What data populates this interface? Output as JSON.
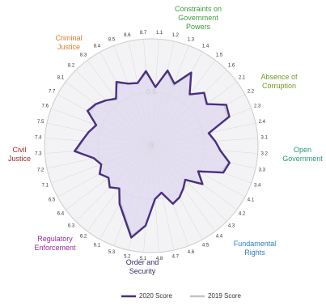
{
  "chart_data": {
    "type": "radar",
    "categories": [
      "1.1",
      "1.2",
      "1.3",
      "1.4",
      "1.5",
      "1.6",
      "2.1",
      "2.2",
      "2.3",
      "2.4",
      "3.1",
      "3.2",
      "3.3",
      "3.4",
      "4.1",
      "4.2",
      "4.3",
      "4.4",
      "4.5",
      "4.6",
      "4.7",
      "4.8",
      "5.1",
      "5.2",
      "5.3",
      "6.1",
      "6.2",
      "6.3",
      "6.4",
      "6.5",
      "7.1",
      "7.2",
      "7.3",
      "7.4",
      "7.5",
      "7.6",
      "7.7",
      "8.1",
      "8.2",
      "8.3",
      "8.4",
      "8.5",
      "8.6",
      "8.7"
    ],
    "groups": [
      {
        "lines": [
          "Constraints on",
          "Government",
          "Powers"
        ],
        "color": "#3f9a3f"
      },
      {
        "lines": [
          "Absence of",
          "Corruption"
        ],
        "color": "#6f9a1f"
      },
      {
        "lines": [
          "Open",
          "Government"
        ],
        "color": "#1f9a7a"
      },
      {
        "lines": [
          "Fundamental",
          "Rights"
        ],
        "color": "#2a7fc4"
      },
      {
        "lines": [
          "Order and",
          "Security"
        ],
        "color": "#3b2a6e"
      },
      {
        "lines": [
          "Regulatory",
          "Enforcement"
        ],
        "color": "#9a2a9a"
      },
      {
        "lines": [
          "Civil",
          "Justice"
        ],
        "color": "#a0282a"
      },
      {
        "lines": [
          "Criminal",
          "Justice"
        ],
        "color": "#e07a2a"
      }
    ],
    "series": [
      {
        "name": "2019 Score",
        "color": "#c4c4c4",
        "fill": "#ddd8ee",
        "values": [
          0.56,
          0.7,
          0.6,
          0.76,
          0.6,
          0.7,
          0.66,
          0.78,
          0.76,
          0.56,
          0.6,
          0.64,
          0.74,
          0.7,
          0.5,
          0.6,
          0.46,
          0.5,
          0.56,
          0.58,
          0.46,
          0.5,
          0.74,
          0.86,
          0.7,
          0.6,
          0.5,
          0.56,
          0.5,
          0.56,
          0.5,
          0.56,
          0.7,
          0.64,
          0.6,
          0.56,
          0.66,
          0.64,
          0.6,
          0.56,
          0.66,
          0.62,
          0.6,
          0.68
        ]
      },
      {
        "name": "2020 Score",
        "color": "#4b2e83",
        "values": [
          0.55,
          0.72,
          0.62,
          0.78,
          0.6,
          0.7,
          0.65,
          0.8,
          0.78,
          0.55,
          0.6,
          0.65,
          0.75,
          0.72,
          0.5,
          0.6,
          0.45,
          0.5,
          0.55,
          0.58,
          0.45,
          0.5,
          0.75,
          0.88,
          0.72,
          0.62,
          0.5,
          0.55,
          0.5,
          0.55,
          0.5,
          0.55,
          0.72,
          0.65,
          0.6,
          0.55,
          0.68,
          0.65,
          0.6,
          0.55,
          0.68,
          0.62,
          0.6,
          0.7
        ]
      }
    ],
    "rlim": [
      0,
      1
    ],
    "rticks": [
      0,
      0.5
    ]
  }
}
